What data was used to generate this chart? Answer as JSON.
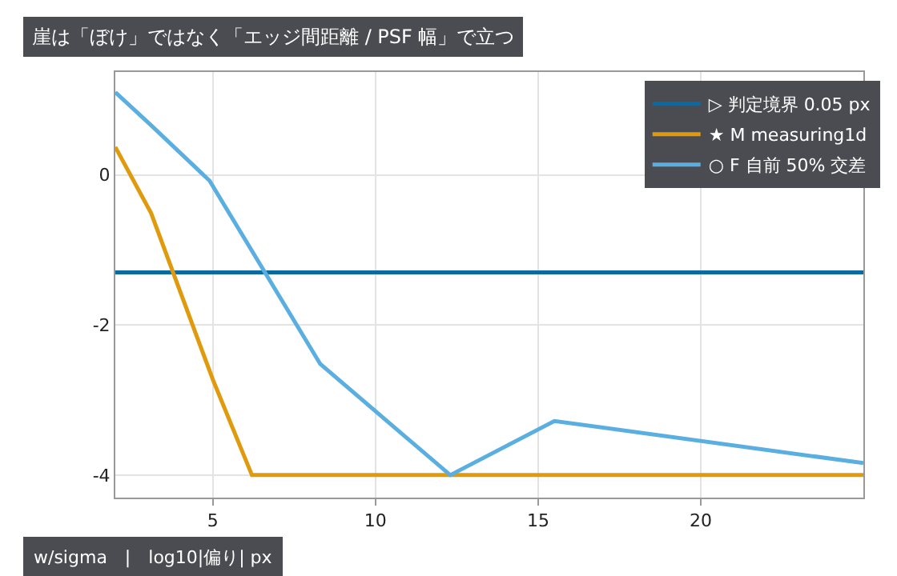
{
  "chart_data": {
    "type": "line",
    "title": "崖は「ぼけ」ではなく「エッジ間距離 / PSF 幅」で立つ",
    "xlabel": "w/sigma　|　log10|偏り| px",
    "x": [
      2,
      3.1,
      5,
      6.2,
      12.3,
      25
    ],
    "series": [
      {
        "name": "★ M measuring1d",
        "color": "#e09a0e",
        "values": [
          0.37,
          -0.51,
          -2.73,
          -4.0,
          -4.0,
          -4.0
        ]
      },
      {
        "name": "○ F 自前 50% 交差",
        "color": "#5aafe0",
        "x": [
          2,
          3.1,
          4.9,
          8.3,
          12.3,
          15.5,
          25
        ],
        "values": [
          1.1,
          0.66,
          -0.08,
          -2.52,
          -4.0,
          -3.28,
          -3.84
        ]
      }
    ],
    "ref_lines": [
      {
        "axis": "y",
        "value": -1.3,
        "label": "▷ 判定境界 0.05 px",
        "color": "#0b6aa2"
      }
    ],
    "xlim": [
      2,
      25
    ],
    "xticks": [
      5,
      10,
      15,
      20
    ],
    "ylim": [
      -4.3,
      1.37
    ],
    "yticks": [
      0,
      -2,
      -4
    ],
    "grid": true,
    "legend": "top right",
    "marker": "none",
    "line_style": "solid"
  }
}
